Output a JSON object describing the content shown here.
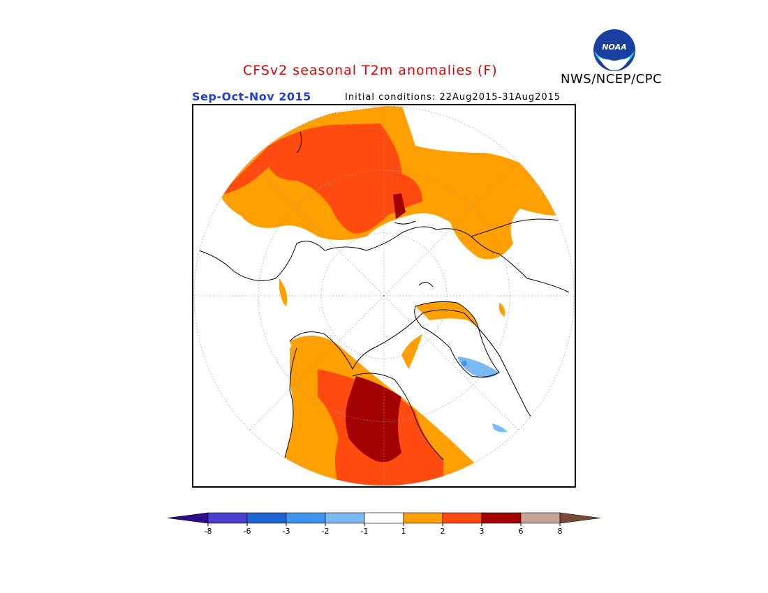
{
  "header": {
    "title": "CFSv2 seasonal T2m anomalies (F)",
    "agency": "NWS/NCEP/CPC",
    "logo_text": "NOAA",
    "season": "Sep-Oct-Nov 2015",
    "initial_conditions": "Initial conditions: 22Aug2015-31Aug2015"
  },
  "colors": {
    "title": "#e00000",
    "season": "#1f3fd8",
    "grid": "#999999",
    "coast": "#000000"
  },
  "legend": {
    "bins": [
      {
        "color": "#2e0c8a"
      },
      {
        "color": "#4b3ed0"
      },
      {
        "color": "#1f66d2"
      },
      {
        "color": "#3f93ee"
      },
      {
        "color": "#7db9f2"
      },
      {
        "color": "#ffffff"
      },
      {
        "color": "#ffa000"
      },
      {
        "color": "#ff4a10"
      },
      {
        "color": "#a30000"
      },
      {
        "color": "#c8a596"
      },
      {
        "color": "#7a4a36"
      }
    ],
    "labels": [
      "-8",
      "-6",
      "-3",
      "-2",
      "-1",
      "1",
      "2",
      "3",
      "6",
      "8"
    ]
  }
}
